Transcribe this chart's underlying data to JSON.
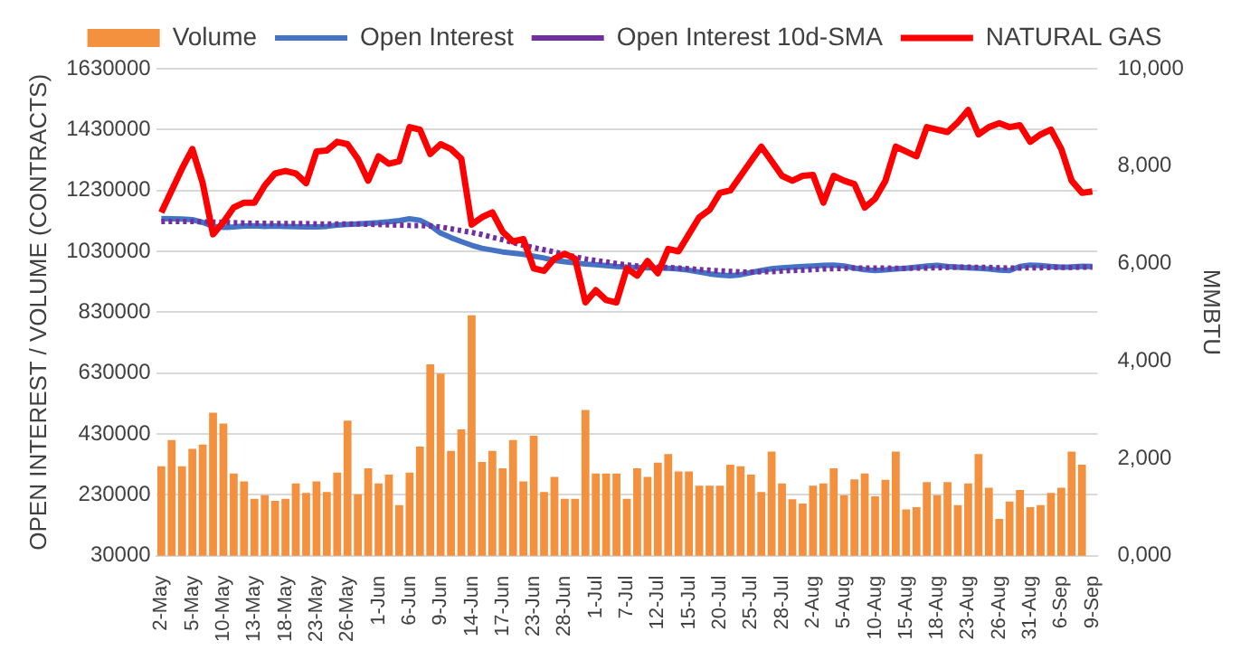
{
  "chart_data": {
    "type": "bar",
    "categories": [
      "2-May",
      null,
      null,
      "5-May",
      null,
      null,
      "10-May",
      null,
      null,
      "13-May",
      null,
      null,
      "18-May",
      null,
      null,
      "23-May",
      null,
      null,
      "26-May",
      null,
      null,
      "1-Jun",
      null,
      null,
      "6-Jun",
      null,
      null,
      "9-Jun",
      null,
      null,
      "14-Jun",
      null,
      null,
      "17-Jun",
      null,
      null,
      "23-Jun",
      null,
      null,
      "28-Jun",
      null,
      null,
      "1-Jul",
      null,
      null,
      "7-Jul",
      null,
      null,
      "12-Jul",
      null,
      null,
      "15-Jul",
      null,
      null,
      "20-Jul",
      null,
      null,
      "25-Jul",
      null,
      null,
      "28-Jul",
      null,
      null,
      "2-Aug",
      null,
      null,
      "5-Aug",
      null,
      null,
      "10-Aug",
      null,
      null,
      "15-Aug",
      null,
      null,
      "18-Aug",
      null,
      null,
      "23-Aug",
      null,
      null,
      "26-Aug",
      null,
      null,
      "31-Aug",
      null,
      null,
      "6-Sep",
      null,
      null,
      "9-Sep"
    ],
    "series": [
      {
        "name": "Volume",
        "color": "#f4913f",
        "values": [
          324000,
          410000,
          324000,
          381000,
          395000,
          500000,
          464000,
          300000,
          274000,
          217000,
          229000,
          210000,
          217000,
          267000,
          236000,
          274000,
          239000,
          303000,
          474000,
          232000,
          317000,
          267000,
          296000,
          196000,
          303000,
          388000,
          659000,
          628000,
          374000,
          445000,
          820000,
          338000,
          374000,
          317000,
          410000,
          274000,
          424000,
          239000,
          289000,
          217000,
          217000,
          509000,
          300000,
          300000,
          300000,
          217000,
          317000,
          289000,
          336000,
          364000,
          307000,
          307000,
          260000,
          260000,
          260000,
          329000,
          324000,
          296000,
          239000,
          372000,
          267000,
          215000,
          201000,
          260000,
          267000,
          317000,
          229000,
          281000,
          300000,
          225000,
          279000,
          372000,
          182000,
          189000,
          272000,
          229000,
          272000,
          196000,
          267000,
          364000,
          253000,
          151000,
          208000,
          246000,
          189000,
          196000,
          236000,
          253000,
          372000,
          329000,
          null
        ]
      },
      {
        "name": "Open Interest",
        "type": "line",
        "color": "#4472c4",
        "values": [
          1138000,
          1137000,
          1136000,
          1134000,
          1125000,
          1112000,
          1109000,
          1110000,
          1113000,
          1114000,
          1112000,
          1113000,
          1112000,
          1111000,
          1110000,
          1110000,
          1112000,
          1116000,
          1118000,
          1120000,
          1122000,
          1124000,
          1127000,
          1131000,
          1137000,
          1132000,
          1115000,
          1090000,
          1075000,
          1062000,
          1050000,
          1040000,
          1034000,
          1028000,
          1024000,
          1020000,
          1014000,
          1008000,
          1000000,
          996000,
          992000,
          988000,
          986000,
          983000,
          980000,
          978000,
          977000,
          976000,
          975000,
          974000,
          972000,
          968000,
          962000,
          956000,
          952000,
          950000,
          953000,
          960000,
          967000,
          973000,
          976000,
          978000,
          980000,
          982000,
          984000,
          985000,
          982000,
          975000,
          970000,
          967000,
          969000,
          972000,
          974000,
          978000,
          982000,
          984000,
          980000,
          978000,
          976000,
          974000,
          972000,
          968000,
          967000,
          980000,
          985000,
          983000,
          980000,
          978000,
          979000,
          981000,
          980000
        ]
      },
      {
        "name": "Open Interest 10d-SMA",
        "type": "line",
        "line_style": "dotted",
        "color": "#7030a0",
        "values": [
          1128000,
          1128000,
          1128000,
          1128000,
          1127000,
          1126000,
          1125000,
          1124000,
          1123000,
          1122000,
          1122000,
          1121000,
          1121000,
          1121000,
          1121000,
          1120000,
          1120000,
          1120000,
          1120000,
          1120000,
          1119000,
          1118000,
          1117000,
          1116000,
          1115000,
          1115000,
          1113000,
          1110000,
          1104000,
          1098000,
          1092000,
          1085000,
          1076000,
          1068000,
          1059000,
          1050000,
          1042000,
          1035000,
          1028000,
          1020000,
          1012000,
          1005000,
          1000000,
          995000,
          990000,
          985000,
          982000,
          980000,
          978000,
          977000,
          975000,
          973000,
          970000,
          968000,
          966000,
          964000,
          962000,
          962000,
          963000,
          963000,
          965000,
          967000,
          968000,
          970000,
          972000,
          973000,
          974000,
          975000,
          975000,
          975000,
          975000,
          974000,
          974000,
          975000,
          975000,
          976000,
          977000,
          978000,
          978000,
          977000,
          977000,
          976000,
          975000,
          975000,
          976000,
          976000,
          977000,
          977000,
          977000,
          978000,
          978000
        ]
      },
      {
        "name": "NATURAL GAS",
        "type": "line",
        "axis": "y2",
        "color": "#ff0000",
        "values": [
          7050,
          7500,
          7950,
          8350,
          7650,
          6600,
          6850,
          7150,
          7250,
          7250,
          7600,
          7850,
          7900,
          7850,
          7650,
          8300,
          8320,
          8500,
          8450,
          8150,
          7700,
          8200,
          8050,
          8100,
          8800,
          8750,
          8250,
          8450,
          8350,
          8150,
          6800,
          6950,
          7050,
          6650,
          6450,
          6500,
          5900,
          5850,
          6100,
          6200,
          6100,
          5200,
          5450,
          5250,
          5200,
          5900,
          5750,
          6050,
          5800,
          6300,
          6250,
          6600,
          6950,
          7100,
          7450,
          7500,
          7800,
          8100,
          8400,
          8100,
          7800,
          7700,
          7800,
          7820,
          7250,
          7800,
          7700,
          7630,
          7150,
          7330,
          7700,
          8400,
          8300,
          8200,
          8800,
          8750,
          8700,
          8900,
          9150,
          8650,
          8800,
          8880,
          8800,
          8840,
          8500,
          8650,
          8750,
          8350,
          7700,
          7450,
          7480
        ]
      }
    ],
    "ylabel": "OPEN INTEREST / VOLUME (CONTRACTS)",
    "y2label": "MMBTU",
    "ylim": [
      30000,
      1630000
    ],
    "yticks": [
      30000,
      230000,
      430000,
      630000,
      830000,
      1030000,
      1230000,
      1430000,
      1630000
    ],
    "y2lim": [
      0,
      10000
    ],
    "y2ticks": [
      {
        "value": 0,
        "label": "0,000"
      },
      {
        "value": 2000,
        "label": "2,000"
      },
      {
        "value": 4000,
        "label": "4,000"
      },
      {
        "value": 6000,
        "label": "6,000"
      },
      {
        "value": 8000,
        "label": "8,000"
      },
      {
        "value": 10000,
        "label": "10,000"
      }
    ],
    "grid": "y",
    "legend": "top",
    "marker": "none"
  }
}
